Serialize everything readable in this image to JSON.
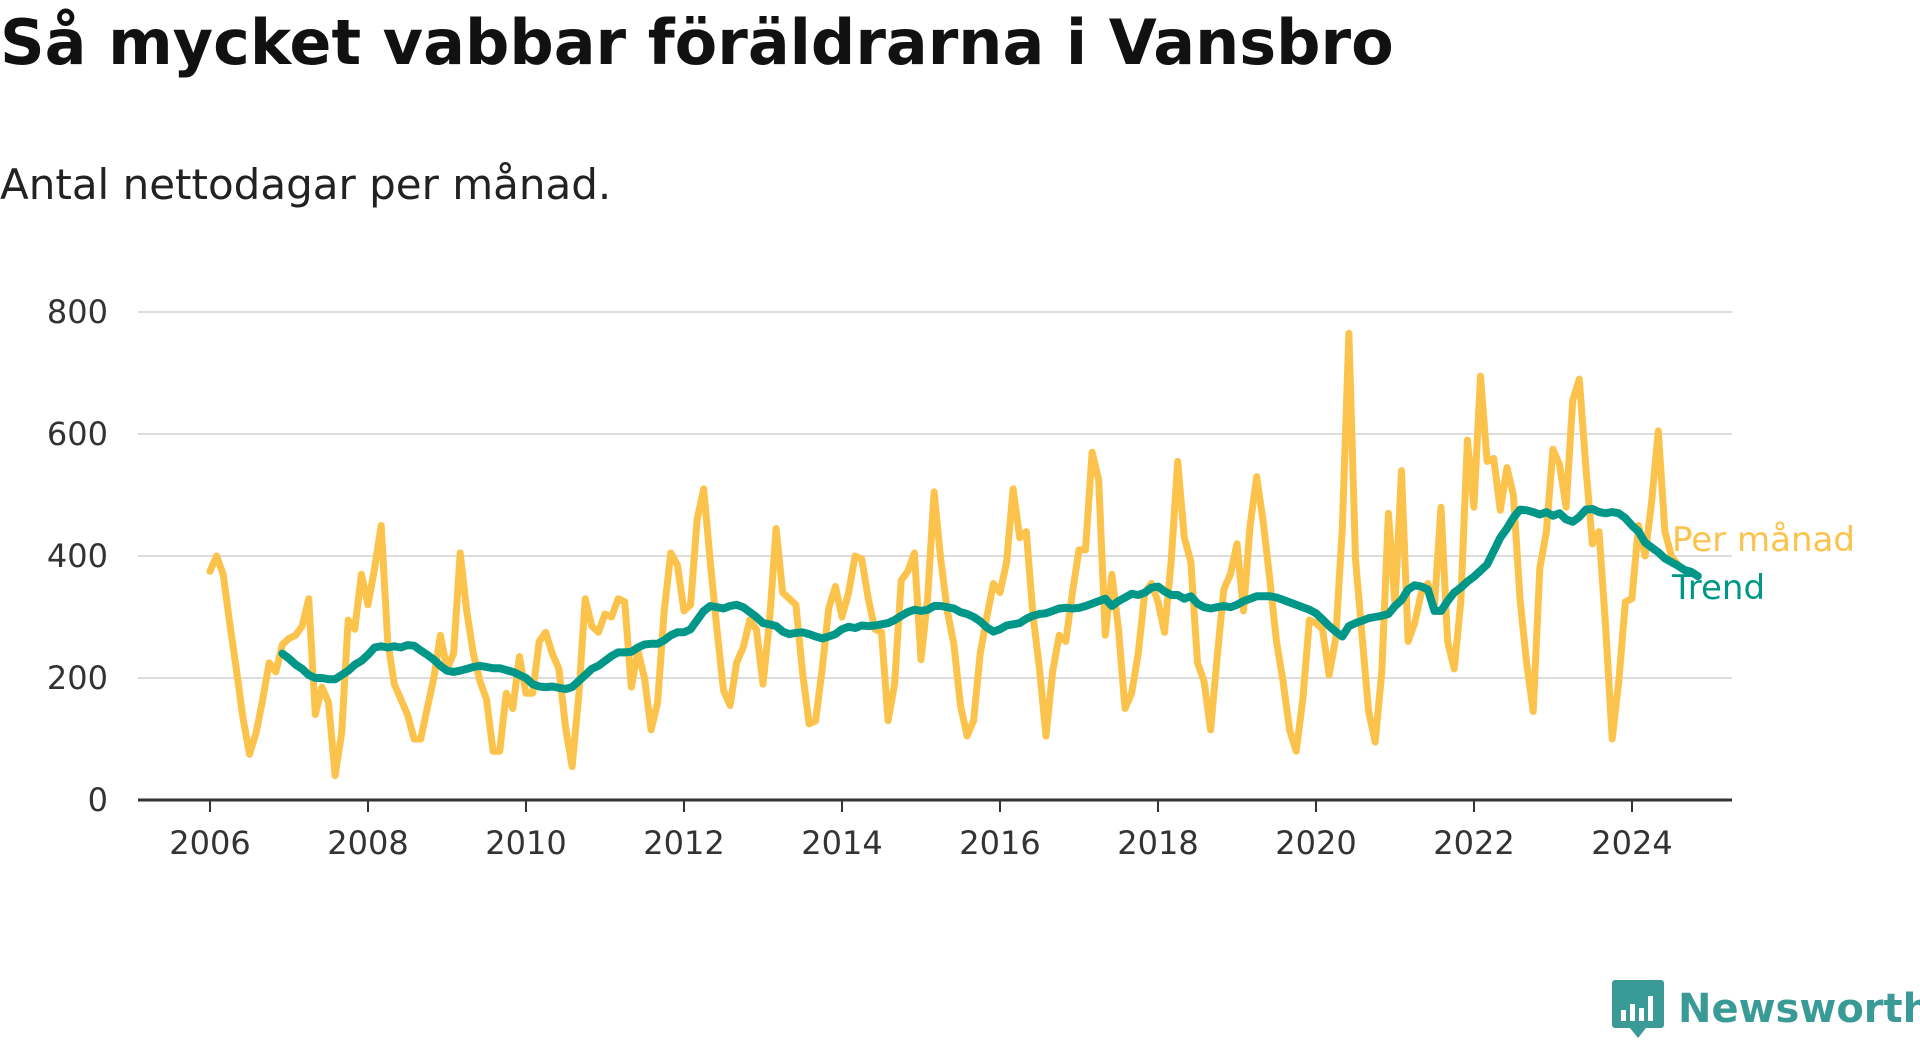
{
  "title": "Så mycket vabbar föräldrarna i Vansbro",
  "subtitle": "Antal nettodagar per månad.",
  "brand": {
    "name": "Newsworthy",
    "color": "#3a9b96",
    "icon": "bar-chart-speech-bubble-icon"
  },
  "chart_data": {
    "type": "line",
    "title": "Så mycket vabbar föräldrarna i Vansbro",
    "subtitle": "Antal nettodagar per månad.",
    "xlabel": "",
    "ylabel": "",
    "xlim": [
      2006,
      2024.5
    ],
    "ylim": [
      0,
      800
    ],
    "y_ticks": [
      0,
      200,
      400,
      600,
      800
    ],
    "x_ticks": [
      2006,
      2008,
      2010,
      2012,
      2014,
      2016,
      2018,
      2020,
      2022,
      2024
    ],
    "grid": "horizontal",
    "legend": "inline labels at right end of lines",
    "series": [
      {
        "name": "Per månad",
        "color": "#fcc34c",
        "x_start": 2006.0,
        "x_step": 0.08333,
        "values": [
          375,
          400,
          370,
          290,
          215,
          135,
          75,
          110,
          165,
          225,
          210,
          255,
          265,
          270,
          285,
          330,
          140,
          185,
          160,
          40,
          110,
          295,
          280,
          370,
          320,
          380,
          450,
          260,
          190,
          165,
          140,
          100,
          100,
          150,
          200,
          270,
          215,
          240,
          405,
          310,
          240,
          195,
          165,
          80,
          80,
          175,
          150,
          235,
          175,
          175,
          260,
          275,
          240,
          215,
          120,
          55,
          170,
          330,
          285,
          275,
          305,
          300,
          330,
          325,
          185,
          245,
          200,
          115,
          160,
          310,
          405,
          385,
          310,
          320,
          460,
          510,
          390,
          280,
          180,
          155,
          225,
          250,
          295,
          280,
          190,
          295,
          445,
          340,
          330,
          320,
          210,
          125,
          130,
          215,
          315,
          350,
          300,
          340,
          400,
          395,
          330,
          280,
          275,
          130,
          190,
          360,
          375,
          405,
          230,
          330,
          505,
          395,
          310,
          255,
          155,
          105,
          130,
          240,
          300,
          355,
          340,
          390,
          510,
          430,
          440,
          305,
          215,
          105,
          210,
          270,
          260,
          340,
          410,
          410,
          570,
          525,
          270,
          370,
          280,
          150,
          175,
          240,
          340,
          355,
          325,
          275,
          390,
          555,
          430,
          390,
          225,
          195,
          115,
          235,
          345,
          370,
          420,
          310,
          450,
          530,
          455,
          360,
          260,
          195,
          115,
          80,
          165,
          295,
          290,
          280,
          205,
          265,
          445,
          765,
          395,
          270,
          145,
          95,
          210,
          470,
          320,
          540,
          260,
          290,
          340,
          355,
          320,
          480,
          260,
          215,
          325,
          590,
          480,
          695,
          555,
          560,
          475,
          545,
          500,
          330,
          225,
          145,
          380,
          440,
          575,
          550,
          480,
          655,
          690,
          545,
          420,
          440,
          285,
          100,
          195,
          325,
          330,
          450,
          400,
          490,
          605,
          440,
          400,
          385
        ]
      },
      {
        "name": "Trend",
        "color": "#009688",
        "x_start": 2006.917,
        "x_step": 0.08333,
        "values": [
          240,
          232,
          222,
          215,
          205,
          200,
          200,
          198,
          198,
          205,
          212,
          222,
          228,
          238,
          250,
          252,
          250,
          252,
          250,
          254,
          253,
          245,
          238,
          230,
          220,
          212,
          210,
          212,
          215,
          218,
          220,
          218,
          216,
          216,
          213,
          210,
          205,
          200,
          190,
          186,
          185,
          186,
          184,
          182,
          185,
          195,
          205,
          215,
          220,
          228,
          236,
          242,
          242,
          243,
          250,
          255,
          256,
          256,
          262,
          270,
          275,
          275,
          280,
          295,
          310,
          318,
          316,
          314,
          318,
          320,
          316,
          308,
          300,
          290,
          288,
          285,
          276,
          272,
          274,
          275,
          272,
          268,
          265,
          268,
          272,
          280,
          284,
          282,
          286,
          285,
          286,
          288,
          290,
          295,
          302,
          308,
          312,
          310,
          312,
          318,
          318,
          316,
          314,
          308,
          305,
          300,
          293,
          283,
          276,
          280,
          286,
          288,
          290,
          297,
          302,
          305,
          306,
          310,
          314,
          315,
          314,
          315,
          318,
          322,
          326,
          330,
          318,
          326,
          332,
          338,
          336,
          340,
          348,
          350,
          342,
          336,
          336,
          330,
          334,
          322,
          316,
          314,
          316,
          318,
          316,
          320,
          326,
          330,
          334,
          334,
          334,
          332,
          328,
          324,
          320,
          316,
          312,
          306,
          296,
          285,
          276,
          268,
          285,
          290,
          294,
          298,
          300,
          302,
          305,
          318,
          328,
          345,
          352,
          350,
          345,
          310,
          310,
          326,
          340,
          348,
          358,
          366,
          376,
          386,
          408,
          430,
          445,
          463,
          476,
          475,
          472,
          468,
          472,
          466,
          470,
          460,
          456,
          464,
          476,
          477,
          472,
          470,
          472,
          470,
          462,
          450,
          440,
          422,
          414,
          406,
          396,
          390,
          384,
          377,
          374,
          367
        ]
      }
    ]
  }
}
